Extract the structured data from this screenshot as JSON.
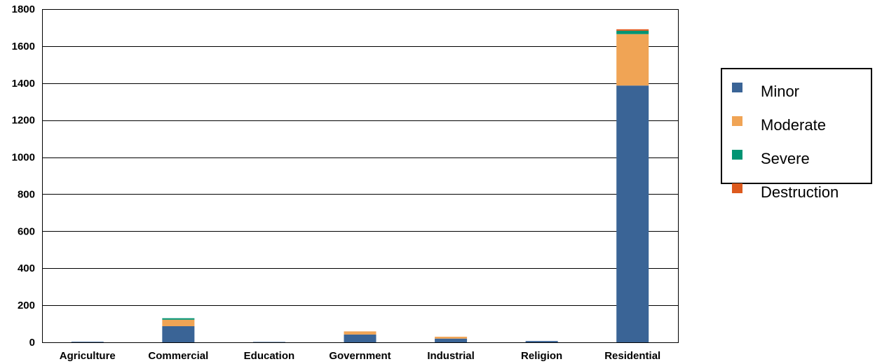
{
  "chart_data": {
    "type": "bar",
    "stacked": true,
    "categories": [
      "Agriculture",
      "Commercial",
      "Education",
      "Government",
      "Industrial",
      "Religion",
      "Residential"
    ],
    "series": [
      {
        "name": "Minor",
        "color": "#3a6496",
        "values": [
          3,
          87,
          2,
          42,
          20,
          7,
          1387
        ]
      },
      {
        "name": "Moderate",
        "color": "#f0a455",
        "values": [
          0,
          35,
          0,
          17,
          10,
          0,
          278
        ]
      },
      {
        "name": "Severe",
        "color": "#009473",
        "values": [
          0,
          8,
          0,
          0,
          0,
          0,
          18
        ]
      },
      {
        "name": "Destruction",
        "color": "#dd5a1e",
        "values": [
          0,
          0,
          0,
          0,
          0,
          0,
          8
        ]
      }
    ],
    "ylim": [
      0,
      1800
    ],
    "yticks": [
      0,
      200,
      400,
      600,
      800,
      1000,
      1200,
      1400,
      1600,
      1800
    ],
    "grid": true,
    "legend_position": "right"
  }
}
